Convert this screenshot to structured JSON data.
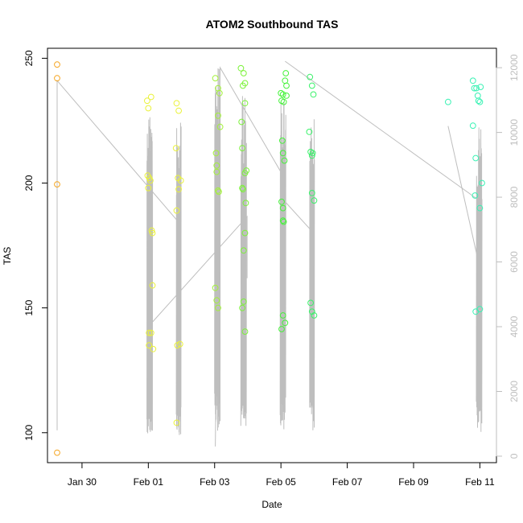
{
  "chart_data": {
    "type": "scatter",
    "title": "ATOM2 Southbound TAS",
    "xlabel": "Date",
    "ylabel": "TAS",
    "x_axis": {
      "unit": "date",
      "range": [
        "2022-01-28T23:00",
        "2022-02-11T12:00"
      ],
      "ticks": [
        {
          "date": "2022-01-30",
          "label": "Jan 30"
        },
        {
          "date": "2022-02-01",
          "label": "Feb 01"
        },
        {
          "date": "2022-02-03",
          "label": "Feb 03"
        },
        {
          "date": "2022-02-05",
          "label": "Feb 05"
        },
        {
          "date": "2022-02-07",
          "label": "Feb 07"
        },
        {
          "date": "2022-02-09",
          "label": "Feb 09"
        },
        {
          "date": "2022-02-11",
          "label": "Feb 11"
        }
      ]
    },
    "y_axis": {
      "range": [
        88,
        254
      ],
      "ticks": [
        100,
        150,
        200,
        250
      ]
    },
    "y2_axis": {
      "range": [
        -200,
        12600
      ],
      "ticks": [
        0,
        2000,
        4000,
        6000,
        8000,
        10000,
        12000
      ],
      "color": "#bebebe"
    },
    "grid": false,
    "legend": "none",
    "line_color": "#bebebe",
    "series": [
      {
        "color": "#f5a623",
        "points": [
          [
            "2022-01-29T06:00",
            247.5
          ],
          [
            "2022-01-29T06:00",
            242
          ],
          [
            "2022-01-29T06:00",
            199.5
          ],
          [
            "2022-01-29T06:00",
            92
          ]
        ]
      },
      {
        "color": "#eaf23a",
        "points": [
          [
            "2022-01-31T23:10",
            233
          ],
          [
            "2022-02-01T00:00",
            230
          ],
          [
            "2022-02-01T02:00",
            234.5
          ],
          [
            "2022-01-31T23:30",
            203
          ],
          [
            "2022-02-01T00:40",
            202
          ],
          [
            "2022-02-01T01:30",
            201
          ],
          [
            "2022-02-01T00:00",
            198
          ],
          [
            "2022-02-01T02:30",
            181
          ],
          [
            "2022-02-01T03:00",
            180
          ],
          [
            "2022-02-01T03:00",
            159
          ],
          [
            "2022-02-01T00:30",
            140
          ],
          [
            "2022-02-01T02:00",
            140
          ],
          [
            "2022-02-01T00:30",
            135
          ],
          [
            "2022-02-01T03:30",
            133.5
          ],
          [
            "2022-02-01T20:30",
            232
          ],
          [
            "2022-02-01T22:00",
            229
          ],
          [
            "2022-02-01T20:00",
            214
          ],
          [
            "2022-02-01T21:30",
            202
          ],
          [
            "2022-02-01T23:30",
            201
          ],
          [
            "2022-02-01T22:00",
            197.5
          ],
          [
            "2022-02-01T20:30",
            189
          ],
          [
            "2022-02-01T21:00",
            135
          ],
          [
            "2022-02-01T23:00",
            135.5
          ],
          [
            "2022-02-01T20:30",
            104
          ]
        ]
      },
      {
        "color": "#a3f23a",
        "points": [
          [
            "2022-02-03T00:30",
            242
          ],
          [
            "2022-02-03T02:30",
            238
          ],
          [
            "2022-02-03T03:30",
            236
          ],
          [
            "2022-02-03T02:30",
            227
          ],
          [
            "2022-02-03T04:00",
            222.5
          ],
          [
            "2022-02-03T01:00",
            212
          ],
          [
            "2022-02-03T01:30",
            207
          ],
          [
            "2022-02-03T01:30",
            204.5
          ],
          [
            "2022-02-03T02:30",
            197
          ],
          [
            "2022-02-03T03:00",
            196.5
          ],
          [
            "2022-02-03T00:30",
            158
          ],
          [
            "2022-02-03T01:30",
            153
          ],
          [
            "2022-02-03T02:30",
            150
          ]
        ]
      },
      {
        "color": "#7cf23a",
        "points": [
          [
            "2022-02-03T19:00",
            246
          ],
          [
            "2022-02-03T21:00",
            244
          ],
          [
            "2022-02-03T22:00",
            240
          ],
          [
            "2022-02-03T20:30",
            239
          ],
          [
            "2022-02-03T22:00",
            232
          ],
          [
            "2022-02-03T19:30",
            224.5
          ],
          [
            "2022-02-03T20:00",
            214
          ],
          [
            "2022-02-03T23:00",
            205
          ],
          [
            "2022-02-03T22:00",
            204
          ],
          [
            "2022-02-03T20:00",
            198
          ],
          [
            "2022-02-03T20:30",
            197.5
          ],
          [
            "2022-02-03T22:30",
            192
          ],
          [
            "2022-02-03T22:00",
            180
          ],
          [
            "2022-02-03T21:00",
            173
          ],
          [
            "2022-02-03T21:00",
            152.5
          ],
          [
            "2022-02-03T20:00",
            150
          ],
          [
            "2022-02-03T22:00",
            140.5
          ]
        ]
      },
      {
        "color": "#45f23a",
        "points": [
          [
            "2022-02-05T03:30",
            244
          ],
          [
            "2022-02-05T03:00",
            241
          ],
          [
            "2022-02-05T04:00",
            239
          ],
          [
            "2022-02-05T00:00",
            236
          ],
          [
            "2022-02-05T01:30",
            235.5
          ],
          [
            "2022-02-05T04:00",
            235
          ],
          [
            "2022-02-05T00:30",
            233
          ],
          [
            "2022-02-05T02:00",
            232.5
          ],
          [
            "2022-02-05T01:00",
            217
          ],
          [
            "2022-02-05T01:30",
            212
          ],
          [
            "2022-02-05T02:30",
            209
          ],
          [
            "2022-02-05T00:30",
            192.5
          ],
          [
            "2022-02-05T01:30",
            190
          ],
          [
            "2022-02-05T01:30",
            185
          ],
          [
            "2022-02-05T02:00",
            184.5
          ],
          [
            "2022-02-05T01:30",
            147
          ],
          [
            "2022-02-05T03:00",
            144
          ],
          [
            "2022-02-05T00:30",
            141.5
          ]
        ]
      },
      {
        "color": "#3af26a",
        "points": [
          [
            "2022-02-05T21:00",
            242.5
          ],
          [
            "2022-02-05T22:30",
            239
          ],
          [
            "2022-02-05T23:30",
            235.5
          ],
          [
            "2022-02-05T20:30",
            220.5
          ],
          [
            "2022-02-05T21:30",
            212.5
          ],
          [
            "2022-02-05T23:00",
            212
          ],
          [
            "2022-02-05T22:30",
            211
          ],
          [
            "2022-02-05T22:30",
            196
          ],
          [
            "2022-02-06T00:00",
            193
          ],
          [
            "2022-02-05T21:30",
            152
          ],
          [
            "2022-02-05T22:30",
            148.5
          ],
          [
            "2022-02-06T00:00",
            147
          ]
        ]
      },
      {
        "color": "#3af2b4",
        "points": [
          [
            "2022-02-10T01:00",
            232.5
          ],
          [
            "2022-02-10T19:00",
            241
          ],
          [
            "2022-02-10T20:00",
            238
          ],
          [
            "2022-02-10T21:30",
            238
          ],
          [
            "2022-02-11T00:30",
            238.5
          ],
          [
            "2022-02-10T22:30",
            235
          ],
          [
            "2022-02-10T23:00",
            233
          ],
          [
            "2022-02-11T00:00",
            232.5
          ],
          [
            "2022-02-10T19:00",
            223
          ],
          [
            "2022-02-10T21:00",
            210
          ],
          [
            "2022-02-11T01:30",
            200
          ],
          [
            "2022-02-10T20:30",
            195
          ],
          [
            "2022-02-11T00:00",
            190
          ],
          [
            "2022-02-11T00:00",
            149.5
          ],
          [
            "2022-02-10T21:00",
            148.5
          ]
        ]
      }
    ]
  }
}
